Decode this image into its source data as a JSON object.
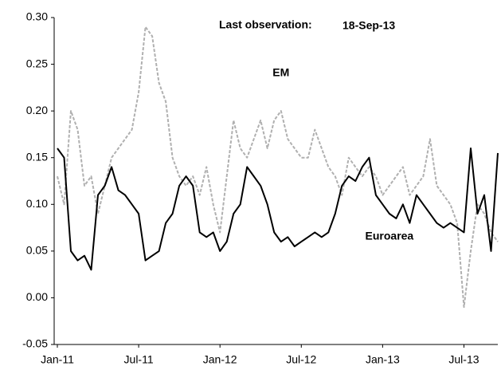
{
  "chart_data": {
    "type": "line",
    "annotation": "Last observation:",
    "last_observation": "18-Sep-13",
    "categories": [
      "Jan-11",
      null,
      null,
      null,
      null,
      null,
      null,
      null,
      null,
      null,
      null,
      null,
      "Jul-11",
      null,
      null,
      null,
      null,
      null,
      null,
      null,
      null,
      null,
      null,
      null,
      "Jan-12",
      null,
      null,
      null,
      null,
      null,
      null,
      null,
      null,
      null,
      null,
      null,
      "Jul-12",
      null,
      null,
      null,
      null,
      null,
      null,
      null,
      null,
      null,
      null,
      null,
      "Jan-13",
      null,
      null,
      null,
      null,
      null,
      null,
      null,
      null,
      null,
      null,
      null,
      "Jul-13",
      null,
      null,
      null,
      null,
      null
    ],
    "series": [
      {
        "name": "EM",
        "color": "#b0b0b0",
        "dashed": true,
        "values": [
          0.13,
          0.1,
          0.2,
          0.18,
          0.12,
          0.13,
          0.09,
          0.12,
          0.15,
          0.16,
          0.17,
          0.18,
          0.22,
          0.29,
          0.28,
          0.23,
          0.21,
          0.15,
          0.13,
          0.12,
          0.13,
          0.11,
          0.14,
          0.1,
          0.07,
          0.13,
          0.19,
          0.16,
          0.15,
          0.17,
          0.19,
          0.16,
          0.19,
          0.2,
          0.17,
          0.16,
          0.15,
          0.15,
          0.18,
          0.16,
          0.14,
          0.13,
          0.11,
          0.15,
          0.14,
          0.13,
          0.14,
          0.13,
          0.11,
          0.12,
          0.13,
          0.14,
          0.11,
          0.12,
          0.13,
          0.17,
          0.12,
          0.11,
          0.1,
          0.08,
          -0.01,
          0.05,
          0.1,
          0.09,
          0.07,
          0.06
        ]
      },
      {
        "name": "Euroarea",
        "color": "#000000",
        "dashed": false,
        "values": [
          0.16,
          0.15,
          0.05,
          0.04,
          0.045,
          0.03,
          0.11,
          0.12,
          0.14,
          0.115,
          0.11,
          0.1,
          0.09,
          0.04,
          0.045,
          0.05,
          0.08,
          0.09,
          0.12,
          0.13,
          0.12,
          0.07,
          0.065,
          0.07,
          0.05,
          0.06,
          0.09,
          0.1,
          0.14,
          0.13,
          0.12,
          0.1,
          0.07,
          0.06,
          0.065,
          0.055,
          0.06,
          0.065,
          0.07,
          0.065,
          0.07,
          0.09,
          0.12,
          0.13,
          0.125,
          0.14,
          0.15,
          0.11,
          0.1,
          0.09,
          0.085,
          0.1,
          0.08,
          0.11,
          0.1,
          0.09,
          0.08,
          0.075,
          0.08,
          0.075,
          0.07,
          0.16,
          0.09,
          0.11,
          0.05,
          0.155
        ]
      }
    ],
    "ylim": [
      -0.05,
      0.3
    ],
    "yticks": [
      {
        "value": 0.3,
        "label": "0.30"
      },
      0.25,
      {
        "value": 0.2,
        "label": "0.20"
      },
      0.15,
      {
        "value": 0.1,
        "label": "0.10"
      },
      0.05,
      {
        "value": 0,
        "label": "0.00"
      },
      -0.05
    ],
    "grid": false
  }
}
